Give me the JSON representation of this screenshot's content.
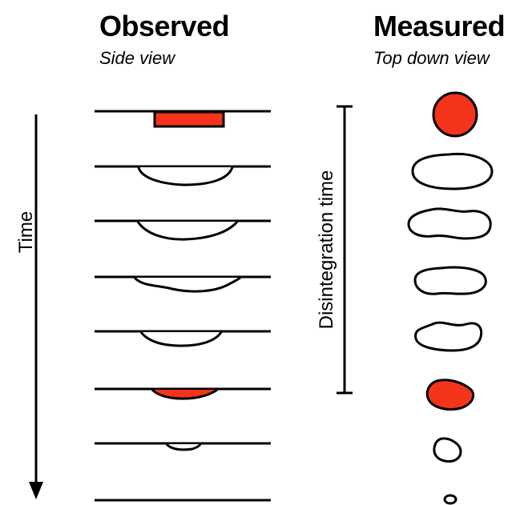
{
  "observed": {
    "title": "Observed",
    "subtitle": "Side view"
  },
  "measured": {
    "title": "Measured",
    "subtitle": "Top down view"
  },
  "time_label": "Time",
  "disintegration_label": "Disintegration time",
  "colors": {
    "highlight": "#f4331b",
    "stroke": "#000000",
    "fill": "#ffffff"
  }
}
